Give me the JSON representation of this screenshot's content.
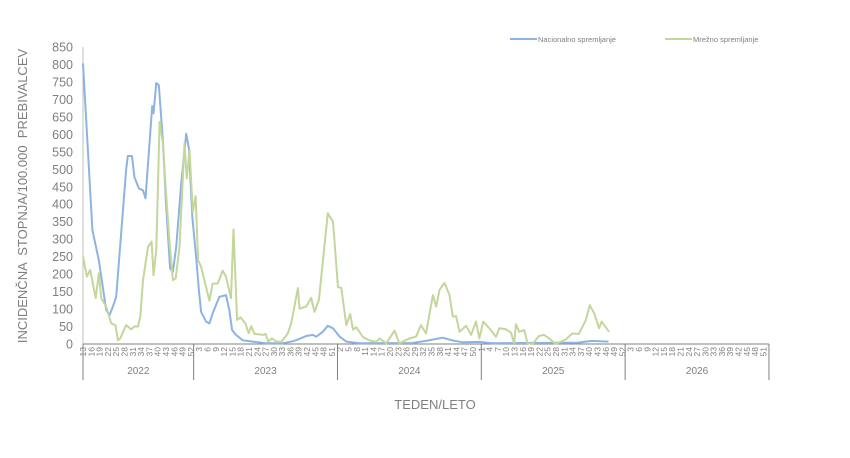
{
  "chart_data": {
    "type": "line",
    "title": "",
    "xlabel": "TEDEN/LETO",
    "ylabel": "INCIDENČNA  STOPNJA/100.000  PREBIVALCEV",
    "ylim": [
      0,
      850
    ],
    "yticks": [
      "0",
      "50",
      "100",
      "150",
      "200",
      "250",
      "300",
      "350",
      "400",
      "450",
      "500",
      "550",
      "600",
      "650",
      "700",
      "750",
      "800",
      "850"
    ],
    "grid": false,
    "legend_position": "top-right",
    "x_start": "2022 week 13",
    "x_unit": "weeks since 2022 week 13",
    "years": [
      {
        "label": "2022",
        "first_week": 13,
        "last_week": 52,
        "ticks": [
          "13",
          "16",
          "19",
          "22",
          "25",
          "28",
          "31",
          "34",
          "37",
          "40",
          "43",
          "46",
          "49",
          "52"
        ]
      },
      {
        "label": "2023",
        "first_week": 1,
        "last_week": 52,
        "ticks": [
          "3",
          "6",
          "9",
          "12",
          "15",
          "18",
          "21",
          "24",
          "27",
          "30",
          "33",
          "36",
          "39",
          "42",
          "45",
          "48",
          "51"
        ]
      },
      {
        "label": "2024",
        "first_week": 1,
        "last_week": 52,
        "ticks": [
          "2",
          "5",
          "8",
          "11",
          "14",
          "17",
          "20",
          "23",
          "26",
          "29",
          "32",
          "35",
          "38",
          "41",
          "44",
          "47",
          "50"
        ]
      },
      {
        "label": "2025",
        "first_week": 1,
        "last_week": 52,
        "ticks": [
          "1",
          "4",
          "7",
          "10",
          "13",
          "16",
          "19",
          "22",
          "25",
          "28",
          "31",
          "34",
          "37",
          "40",
          "43",
          "46",
          "49",
          "52"
        ]
      },
      {
        "label": "2026",
        "first_week": 1,
        "last_week": 52,
        "ticks": [
          "3",
          "6",
          "9",
          "12",
          "15",
          "18",
          "21",
          "24",
          "27",
          "30",
          "33",
          "36",
          "39",
          "42",
          "45",
          "48",
          "51"
        ]
      }
    ],
    "series": [
      {
        "name": "Nacionalno spremljanje",
        "color": "#8db3e2",
        "points": [
          [
            0,
            803
          ],
          [
            3.4,
            326
          ],
          [
            5.7,
            240
          ],
          [
            8.4,
            97
          ],
          [
            9.6,
            83
          ],
          [
            10.8,
            107
          ],
          [
            12,
            135
          ],
          [
            15.6,
            498
          ],
          [
            16.2,
            538
          ],
          [
            17.7,
            538
          ],
          [
            18.6,
            478
          ],
          [
            20.2,
            445
          ],
          [
            21.7,
            440
          ],
          [
            22.6,
            417
          ],
          [
            25,
            681
          ],
          [
            25.5,
            660
          ],
          [
            26.5,
            747
          ],
          [
            27.4,
            741
          ],
          [
            28.9,
            583
          ],
          [
            30,
            402
          ],
          [
            31.5,
            216
          ],
          [
            32.5,
            207
          ],
          [
            33.7,
            278
          ],
          [
            35.5,
            459
          ],
          [
            37.3,
            602
          ],
          [
            38.3,
            560
          ],
          [
            39.5,
            364
          ],
          [
            41,
            240
          ],
          [
            41.9,
            154
          ],
          [
            42.7,
            92
          ],
          [
            44.5,
            64
          ],
          [
            45.7,
            59
          ],
          [
            46.9,
            88
          ],
          [
            49.3,
            135
          ],
          [
            51.7,
            140
          ],
          [
            52.9,
            97
          ],
          [
            53.9,
            40
          ],
          [
            55.3,
            26
          ],
          [
            57.7,
            11
          ],
          [
            61.4,
            7
          ],
          [
            66,
            2
          ],
          [
            72,
            2
          ],
          [
            76,
            8
          ],
          [
            78.3,
            15
          ],
          [
            80.7,
            23
          ],
          [
            83.1,
            26
          ],
          [
            84.3,
            21
          ],
          [
            86.7,
            35
          ],
          [
            88.5,
            52
          ],
          [
            90.4,
            45
          ],
          [
            92.8,
            21
          ],
          [
            95.2,
            7
          ],
          [
            100,
            2
          ],
          [
            119,
            3
          ],
          [
            124,
            9
          ],
          [
            130,
            18
          ],
          [
            133.7,
            10
          ],
          [
            137.3,
            5
          ],
          [
            143.3,
            6
          ],
          [
            148,
            2
          ],
          [
            179,
            4
          ],
          [
            184,
            9
          ],
          [
            190,
            7
          ]
        ]
      },
      {
        "name": "Mrežno spremljanje",
        "color": "#c3d69b",
        "points": [
          [
            0,
            250
          ],
          [
            1.4,
            193
          ],
          [
            2.6,
            212
          ],
          [
            4.6,
            131
          ],
          [
            5.7,
            202
          ],
          [
            6.6,
            131
          ],
          [
            8.4,
            107
          ],
          [
            10.2,
            59
          ],
          [
            11.7,
            54
          ],
          [
            12.6,
            11
          ],
          [
            13.5,
            16
          ],
          [
            15.6,
            54
          ],
          [
            17.4,
            42
          ],
          [
            18.6,
            50
          ],
          [
            19.9,
            50
          ],
          [
            20.7,
            78
          ],
          [
            21.7,
            183
          ],
          [
            23.5,
            278
          ],
          [
            24.8,
            293
          ],
          [
            25.5,
            197
          ],
          [
            26.5,
            269
          ],
          [
            27.7,
            636
          ],
          [
            28.9,
            574
          ],
          [
            30.1,
            421
          ],
          [
            31.3,
            288
          ],
          [
            32.5,
            183
          ],
          [
            33.5,
            188
          ],
          [
            34.9,
            278
          ],
          [
            36.7,
            574
          ],
          [
            37.5,
            474
          ],
          [
            38.5,
            555
          ],
          [
            39.7,
            378
          ],
          [
            40.7,
            423
          ],
          [
            41.6,
            240
          ],
          [
            42.7,
            221
          ],
          [
            45.7,
            124
          ],
          [
            46.9,
            173
          ],
          [
            48.7,
            173
          ],
          [
            50.5,
            210
          ],
          [
            51.7,
            193
          ],
          [
            53.5,
            131
          ],
          [
            54.4,
            328
          ],
          [
            55.7,
            69
          ],
          [
            56.9,
            76
          ],
          [
            58.7,
            59
          ],
          [
            59.9,
            31
          ],
          [
            60.8,
            51
          ],
          [
            62,
            29
          ],
          [
            65.3,
            26
          ],
          [
            66,
            29
          ],
          [
            67,
            7
          ],
          [
            68.3,
            16
          ],
          [
            70,
            7
          ],
          [
            71.8,
            7
          ],
          [
            74,
            30
          ],
          [
            75.3,
            60
          ],
          [
            77.7,
            160
          ],
          [
            78.3,
            101
          ],
          [
            80.7,
            107
          ],
          [
            82.5,
            132
          ],
          [
            83.7,
            92
          ],
          [
            85.3,
            126
          ],
          [
            88.5,
            374
          ],
          [
            90.4,
            350
          ],
          [
            92.2,
            162
          ],
          [
            93.4,
            161
          ],
          [
            95.2,
            54
          ],
          [
            96.6,
            86
          ],
          [
            97.6,
            41
          ],
          [
            98.8,
            48
          ],
          [
            101.2,
            20
          ],
          [
            103.6,
            10
          ],
          [
            106,
            6
          ],
          [
            107.2,
            16
          ],
          [
            109.6,
            2
          ],
          [
            112.6,
            38
          ],
          [
            114.4,
            2
          ],
          [
            118,
            16
          ],
          [
            120.4,
            21
          ],
          [
            122.2,
            54
          ],
          [
            124,
            30
          ],
          [
            126.5,
            140
          ],
          [
            127.7,
            107
          ],
          [
            128.9,
            155
          ],
          [
            130.7,
            175
          ],
          [
            132.5,
            140
          ],
          [
            133.7,
            78
          ],
          [
            134.9,
            80
          ],
          [
            136.1,
            35
          ],
          [
            138.5,
            52
          ],
          [
            140.3,
            26
          ],
          [
            142.1,
            64
          ],
          [
            143.3,
            16
          ],
          [
            144.7,
            64
          ],
          [
            146.9,
            45
          ],
          [
            149.3,
            21
          ],
          [
            150.5,
            45
          ],
          [
            152.9,
            42
          ],
          [
            154.7,
            33
          ],
          [
            155.9,
            2
          ],
          [
            156.5,
            57
          ],
          [
            157.7,
            35
          ],
          [
            159.5,
            40
          ],
          [
            160.7,
            2
          ],
          [
            162.5,
            0
          ],
          [
            164.9,
            23
          ],
          [
            166.7,
            26
          ],
          [
            168.5,
            16
          ],
          [
            170.9,
            0
          ],
          [
            174.5,
            13
          ],
          [
            176.9,
            30
          ],
          [
            179.3,
            29
          ],
          [
            181.8,
            69
          ],
          [
            183.2,
            111
          ],
          [
            184.8,
            88
          ],
          [
            186.6,
            45
          ],
          [
            187.5,
            64
          ],
          [
            190.2,
            35
          ]
        ]
      }
    ]
  }
}
